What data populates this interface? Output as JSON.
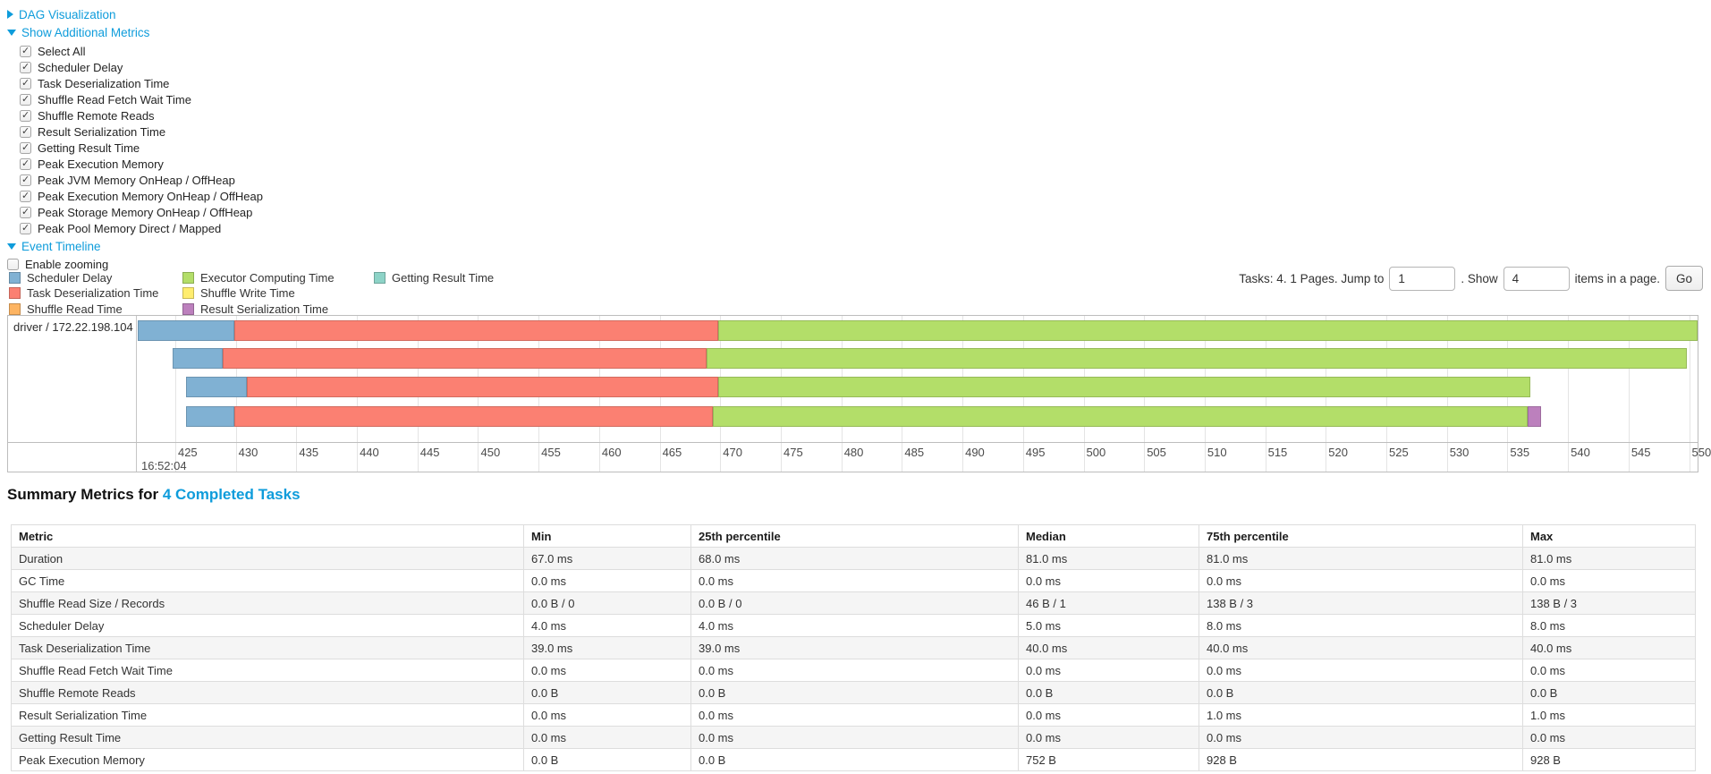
{
  "colors": {
    "link_blue": "#0e9cdb",
    "grid": "#e4e4e4",
    "chart_border": "#bdbdbd",
    "scheduler_delay": "#80B1D3",
    "task_deserialization": "#FB8072",
    "shuffle_read": "#FDB462",
    "executor_computing": "#B3DE69",
    "shuffle_write": "#FFED6F",
    "result_serialization": "#BC80BD",
    "getting_result": "#8DD3C7"
  },
  "controls": {
    "dag_label": "DAG Visualization",
    "metrics_label": "Show Additional Metrics",
    "metric_checkboxes": [
      {
        "label": "Select All",
        "checked": true
      },
      {
        "label": "Scheduler Delay",
        "checked": true
      },
      {
        "label": "Task Deserialization Time",
        "checked": true
      },
      {
        "label": "Shuffle Read Fetch Wait Time",
        "checked": true
      },
      {
        "label": "Shuffle Remote Reads",
        "checked": true
      },
      {
        "label": "Result Serialization Time",
        "checked": true
      },
      {
        "label": "Getting Result Time",
        "checked": true
      },
      {
        "label": "Peak Execution Memory",
        "checked": true
      },
      {
        "label": "Peak JVM Memory OnHeap / OffHeap",
        "checked": true
      },
      {
        "label": "Peak Execution Memory OnHeap / OffHeap",
        "checked": true
      },
      {
        "label": "Peak Storage Memory OnHeap / OffHeap",
        "checked": true
      },
      {
        "label": "Peak Pool Memory Direct / Mapped",
        "checked": true
      }
    ],
    "event_timeline_label": "Event Timeline",
    "enable_zooming": {
      "label": "Enable zooming",
      "checked": false
    }
  },
  "legend_columns": [
    [
      {
        "label": "Scheduler Delay",
        "color": "#80B1D3"
      },
      {
        "label": "Task Deserialization Time",
        "color": "#FB8072"
      },
      {
        "label": "Shuffle Read Time",
        "color": "#FDB462"
      }
    ],
    [
      {
        "label": "Executor Computing Time",
        "color": "#B3DE69"
      },
      {
        "label": "Shuffle Write Time",
        "color": "#FFED6F"
      },
      {
        "label": "Result Serialization Time",
        "color": "#BC80BD"
      }
    ],
    [
      {
        "label": "Getting Result Time",
        "color": "#8DD3C7"
      }
    ]
  ],
  "pagination": {
    "prefix": "Tasks: 4. 1 Pages. Jump to",
    "jump_value": "1",
    "mid": ". Show",
    "show_value": "4",
    "suffix": "items in a page.",
    "go_label": "Go"
  },
  "chart_data": {
    "type": "timeline",
    "group_label": "driver / 172.22.198.104",
    "axis": {
      "min": 421.9,
      "max": 550.7,
      "tick_step_ms": 5,
      "ticks": [
        425,
        430,
        435,
        440,
        445,
        450,
        455,
        460,
        465,
        470,
        475,
        480,
        485,
        490,
        495,
        500,
        505,
        510,
        515,
        520,
        525,
        530,
        535,
        540,
        545,
        550
      ],
      "major_tick_label": "16:52:04",
      "units": "milliseconds within second 16:52:04"
    },
    "tasks": [
      {
        "segments": [
          {
            "name": "scheduler-delay",
            "color": "#80B1D3",
            "start": 421.9,
            "end": 429.9
          },
          {
            "name": "task-deserialization-time",
            "color": "#FB8072",
            "start": 429.9,
            "end": 469.8
          },
          {
            "name": "executor-computing-time",
            "color": "#B3DE69",
            "start": 469.8,
            "end": 550.7
          }
        ]
      },
      {
        "segments": [
          {
            "name": "scheduler-delay",
            "color": "#80B1D3",
            "start": 424.8,
            "end": 428.9
          },
          {
            "name": "task-deserialization-time",
            "color": "#FB8072",
            "start": 428.9,
            "end": 468.9
          },
          {
            "name": "executor-computing-time",
            "color": "#B3DE69",
            "start": 468.9,
            "end": 549.8
          }
        ]
      },
      {
        "segments": [
          {
            "name": "scheduler-delay",
            "color": "#80B1D3",
            "start": 425.9,
            "end": 430.9
          },
          {
            "name": "task-deserialization-time",
            "color": "#FB8072",
            "start": 430.9,
            "end": 469.8
          },
          {
            "name": "executor-computing-time",
            "color": "#B3DE69",
            "start": 469.8,
            "end": 536.9
          }
        ]
      },
      {
        "segments": [
          {
            "name": "scheduler-delay",
            "color": "#80B1D3",
            "start": 425.9,
            "end": 429.9
          },
          {
            "name": "task-deserialization-time",
            "color": "#FB8072",
            "start": 429.9,
            "end": 469.4
          },
          {
            "name": "executor-computing-time",
            "color": "#B3DE69",
            "start": 469.4,
            "end": 536.7
          },
          {
            "name": "result-serialization-time",
            "color": "#BC80BD",
            "start": 536.7,
            "end": 537.8
          }
        ]
      }
    ]
  },
  "summary": {
    "title_prefix": "Summary Metrics for",
    "title_link": "4 Completed Tasks",
    "table": {
      "headers": [
        "Metric",
        "Min",
        "25th percentile",
        "Median",
        "75th percentile",
        "Max"
      ],
      "rows": [
        {
          "metric": "Duration",
          "values": [
            "67.0 ms",
            "68.0 ms",
            "81.0 ms",
            "81.0 ms",
            "81.0 ms"
          ]
        },
        {
          "metric": "GC Time",
          "values": [
            "0.0 ms",
            "0.0 ms",
            "0.0 ms",
            "0.0 ms",
            "0.0 ms"
          ]
        },
        {
          "metric": "Shuffle Read Size / Records",
          "values": [
            "0.0 B / 0",
            "0.0 B / 0",
            "46 B / 1",
            "138 B / 3",
            "138 B / 3"
          ]
        },
        {
          "metric": "Scheduler Delay",
          "values": [
            "4.0 ms",
            "4.0 ms",
            "5.0 ms",
            "8.0 ms",
            "8.0 ms"
          ]
        },
        {
          "metric": "Task Deserialization Time",
          "values": [
            "39.0 ms",
            "39.0 ms",
            "40.0 ms",
            "40.0 ms",
            "40.0 ms"
          ]
        },
        {
          "metric": "Shuffle Read Fetch Wait Time",
          "values": [
            "0.0 ms",
            "0.0 ms",
            "0.0 ms",
            "0.0 ms",
            "0.0 ms"
          ]
        },
        {
          "metric": "Shuffle Remote Reads",
          "values": [
            "0.0 B",
            "0.0 B",
            "0.0 B",
            "0.0 B",
            "0.0 B"
          ]
        },
        {
          "metric": "Result Serialization Time",
          "values": [
            "0.0 ms",
            "0.0 ms",
            "0.0 ms",
            "1.0 ms",
            "1.0 ms"
          ]
        },
        {
          "metric": "Getting Result Time",
          "values": [
            "0.0 ms",
            "0.0 ms",
            "0.0 ms",
            "0.0 ms",
            "0.0 ms"
          ]
        },
        {
          "metric": "Peak Execution Memory",
          "values": [
            "0.0 B",
            "0.0 B",
            "752 B",
            "928 B",
            "928 B"
          ]
        }
      ]
    }
  }
}
